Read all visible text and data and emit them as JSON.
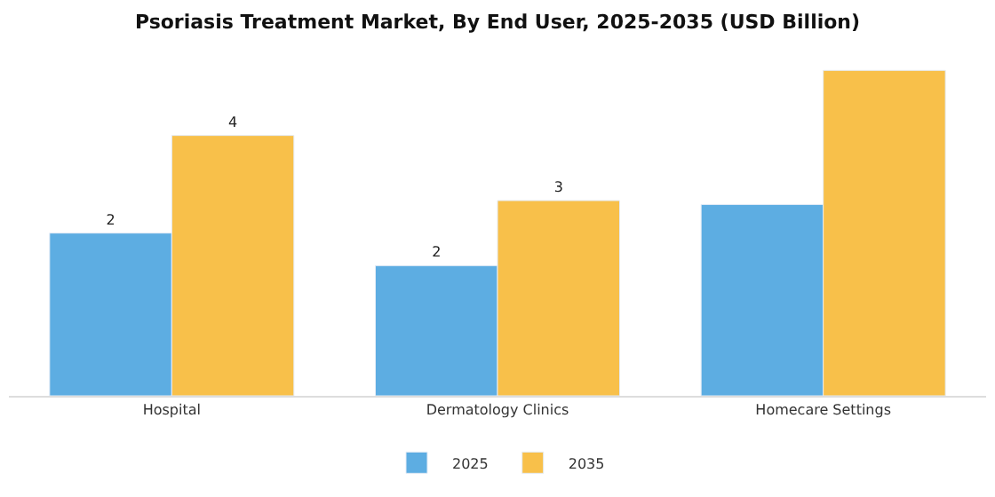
{
  "chart_data": {
    "type": "bar",
    "title": "Psoriasis Treatment Market, By End User, 2025-2035 (USD Billion)",
    "categories": [
      "Hospital",
      "Dermatology Clinics",
      "Homecare Settings"
    ],
    "series": [
      {
        "name": "2025",
        "color": "#5dade2",
        "values": [
          2.5,
          2.0,
          2.94
        ],
        "value_labels": [
          "2",
          "2",
          null
        ]
      },
      {
        "name": "2035",
        "color": "#f8c04a",
        "values": [
          4.0,
          3.0,
          5.0
        ],
        "value_labels": [
          "4",
          "3",
          null
        ]
      }
    ],
    "tick_labels": "x",
    "legend": "bottom"
  }
}
